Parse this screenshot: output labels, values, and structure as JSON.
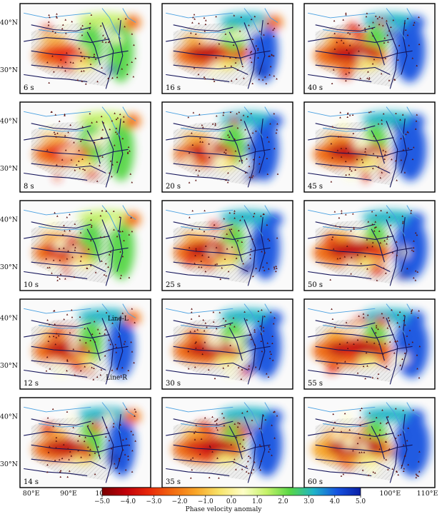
{
  "chart_data": {
    "type": "heatmap",
    "title": "",
    "colorbar": {
      "label": "Phase velocity anomaly",
      "ticks": [
        "−5.0",
        "−4.0",
        "−3.0",
        "−2.0",
        "−1.0",
        "0.0",
        "1.0",
        "2.0",
        "3.0",
        "4.0",
        "5.0"
      ],
      "range": [
        -5,
        5
      ],
      "colors": [
        "#7a0000",
        "#c0000a",
        "#e8280a",
        "#f26a10",
        "#f9a628",
        "#f7e46a",
        "#fefec8",
        "#c6f26a",
        "#57d646",
        "#1fb4c8",
        "#1653e0",
        "#0a1fa5"
      ]
    },
    "x_axis": {
      "ticks": [
        "80°E",
        "90°E",
        "100°E",
        "110°E"
      ],
      "range": [
        77,
        112
      ]
    },
    "y_axis": {
      "ticks": [
        "40°N",
        "30°N"
      ],
      "range": [
        25,
        44
      ]
    },
    "panel_layout": "5 rows x 3 columns, column-major by period",
    "periods": [
      "6 s",
      "8 s",
      "10 s",
      "12 s",
      "14 s",
      "16 s",
      "20 s",
      "25 s",
      "30 s",
      "35 s",
      "40 s",
      "45 s",
      "50 s",
      "55 s",
      "60 s"
    ],
    "annotations": [
      {
        "panel": "12 s",
        "text": "Line-L"
      },
      {
        "panel": "12 s",
        "text": "Line-R"
      }
    ]
  },
  "colors": {
    "background_terrain": "#e6e6e6",
    "blocks": "#14145a",
    "rivers": "#4aa0e0",
    "stations": "#5a1010"
  }
}
